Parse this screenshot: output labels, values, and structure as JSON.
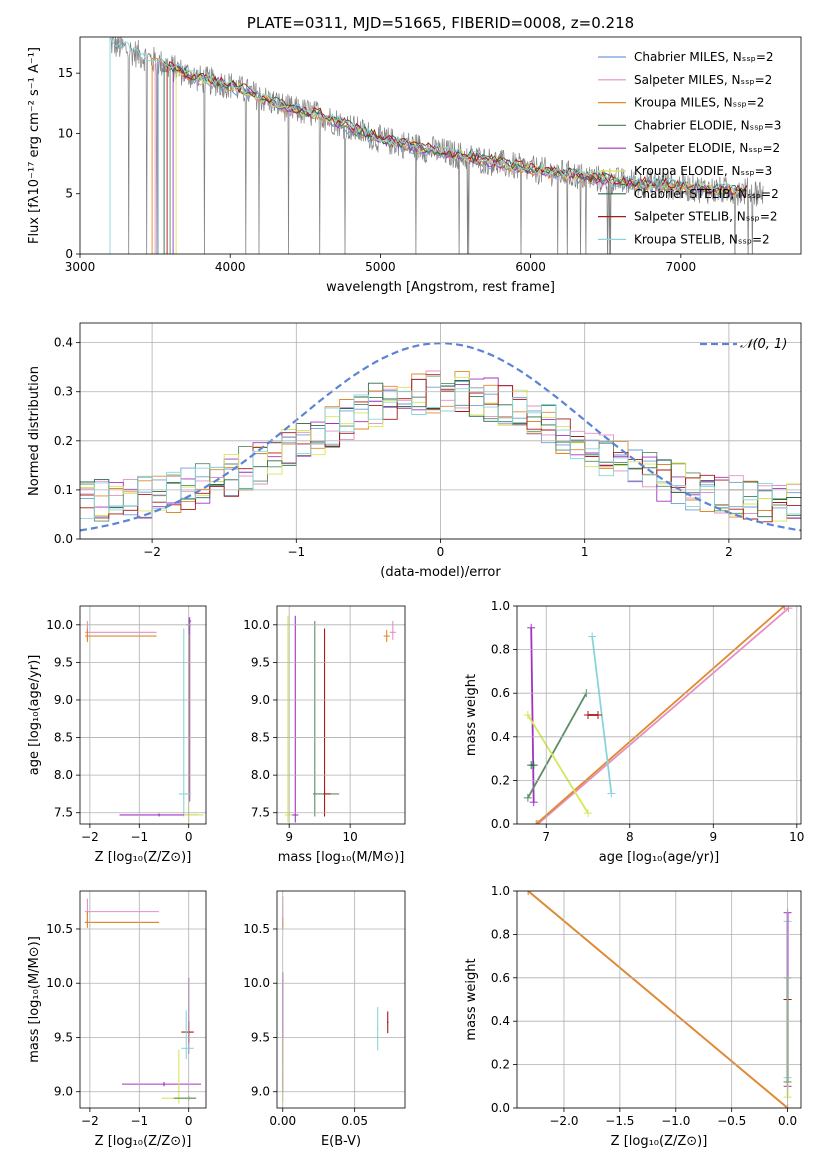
{
  "figure": {
    "series_colors": [
      "#6f9ed6",
      "#e58fc4",
      "#e08a2c",
      "#5b8e66",
      "#a233c2",
      "#d6e65a",
      "#2f6b49",
      "#a61a1a",
      "#88d6dc"
    ],
    "data_color": "#808080",
    "normal_color": "#5b84d6"
  },
  "chart_data": [
    {
      "id": "spectrum",
      "type": "line",
      "title": "PLATE=0311, MJD=51665, FIBERID=0008, z=0.218",
      "xlabel": "wavelength [Angstrom, rest frame]",
      "ylabel": "Flux [fλ10⁻¹⁷ erg cm⁻² s⁻¹ A⁻¹]",
      "xlim": [
        3000,
        7800
      ],
      "ylim": [
        0,
        18
      ],
      "xticks": [
        "3000",
        "4000",
        "5000",
        "6000",
        "7000"
      ],
      "yticks": [
        "0",
        "5",
        "10",
        "15"
      ],
      "legend_position": "top-right",
      "legend": [
        "Chabrier MILES, Nₛₛₚ=2",
        "Salpeter MILES, Nₛₛₚ=2",
        "Kroupa MILES, Nₛₛₚ=2",
        "Chabrier ELODIE, Nₛₛₚ=3",
        "Salpeter ELODIE, Nₛₛₚ=2",
        "Kroupa ELODIE, Nₛₛₚ=3",
        "Chabrier STELIB, Nₛₛₚ=2",
        "Salpeter STELIB, Nₛₛₚ=2",
        "Kroupa STELIB, Nₛₛₚ=2"
      ],
      "continuum": [
        [
          3200,
          17.5
        ],
        [
          3400,
          16.5
        ],
        [
          3600,
          15.5
        ],
        [
          3800,
          14.5
        ],
        [
          4000,
          14.0
        ],
        [
          4200,
          13.0
        ],
        [
          4400,
          12.0
        ],
        [
          4600,
          11.5
        ],
        [
          4800,
          10.5
        ],
        [
          5000,
          9.5
        ],
        [
          5200,
          9.0
        ],
        [
          5400,
          8.5
        ],
        [
          5600,
          8.0
        ],
        [
          5800,
          7.5
        ],
        [
          6000,
          7.0
        ],
        [
          6200,
          6.7
        ],
        [
          6400,
          6.3
        ],
        [
          6600,
          6.0
        ],
        [
          6800,
          5.8
        ],
        [
          7000,
          5.6
        ],
        [
          7200,
          5.3
        ],
        [
          7400,
          5.2
        ],
        [
          7550,
          5.1
        ]
      ]
    },
    {
      "id": "residuals",
      "type": "line",
      "xlabel": "(data-model)/error",
      "ylabel": "Normed distribution",
      "xlim": [
        -2.5,
        2.5
      ],
      "ylim": [
        0,
        0.44
      ],
      "xticks": [
        "−2",
        "−1",
        "0",
        "1",
        "2"
      ],
      "yticks": [
        "0.0",
        "0.1",
        "0.2",
        "0.3",
        "0.4"
      ],
      "legend_position": "top-right",
      "legend": [
        "𝒩(0, 1)"
      ],
      "bin_width": 0.1
    },
    {
      "id": "age-vs-Z",
      "type": "scatter",
      "xlabel": "Z [log₁₀(Z/Z⊙)]",
      "ylabel": "age  [log₁₀(age/yr)]",
      "xlim": [
        -2.2,
        0.35
      ],
      "ylim": [
        7.35,
        10.25
      ],
      "xticks": [
        "−2",
        "−1",
        "0"
      ],
      "yticks": [
        "7.5",
        "8.0",
        "8.5",
        "9.0",
        "9.5",
        "10.0"
      ]
    },
    {
      "id": "age-vs-mass",
      "type": "scatter",
      "xlabel": "mass [log₁₀(M/M⊙)]",
      "xlim": [
        8.8,
        10.9
      ],
      "ylim": [
        7.35,
        10.25
      ],
      "xticks": [
        "9",
        "10"
      ],
      "yticks": [
        "7.5",
        "8.0",
        "8.5",
        "9.0",
        "9.5",
        "10.0"
      ]
    },
    {
      "id": "massweight-vs-age",
      "type": "line",
      "xlabel": "age  [log₁₀(age/yr)]",
      "ylabel": "mass weight",
      "xlim": [
        6.65,
        10.05
      ],
      "ylim": [
        0,
        1.0
      ],
      "xticks": [
        "7",
        "8",
        "9",
        "10"
      ],
      "yticks": [
        "0.0",
        "0.2",
        "0.4",
        "0.6",
        "0.8",
        "1.0"
      ]
    },
    {
      "id": "mass-vs-Z",
      "type": "scatter",
      "xlabel": "Z [log₁₀(Z/Z⊙)]",
      "ylabel": "mass [log₁₀(M/M⊙)]",
      "xlim": [
        -2.2,
        0.35
      ],
      "ylim": [
        8.85,
        10.85
      ],
      "xticks": [
        "−2",
        "−1",
        "0"
      ],
      "yticks": [
        "9.0",
        "9.5",
        "10.0",
        "10.5"
      ]
    },
    {
      "id": "mass-vs-ebv",
      "type": "scatter",
      "xlabel": "E(B-V)",
      "xlim": [
        -0.004,
        0.085
      ],
      "ylim": [
        8.85,
        10.85
      ],
      "xticks": [
        "0.00",
        "0.05"
      ],
      "yticks": [
        "9.0",
        "9.5",
        "10.0",
        "10.5"
      ]
    },
    {
      "id": "massweight-vs-Z",
      "type": "line",
      "xlabel": "Z [log₁₀(Z/Z⊙)]",
      "ylabel": "mass weight",
      "xlim": [
        -2.42,
        0.12
      ],
      "ylim": [
        0,
        1.0
      ],
      "xticks": [
        "−2.0",
        "−1.5",
        "−1.0",
        "−0.5",
        "0.0"
      ],
      "yticks": [
        "0.0",
        "0.2",
        "0.4",
        "0.6",
        "0.8",
        "1.0"
      ]
    }
  ]
}
